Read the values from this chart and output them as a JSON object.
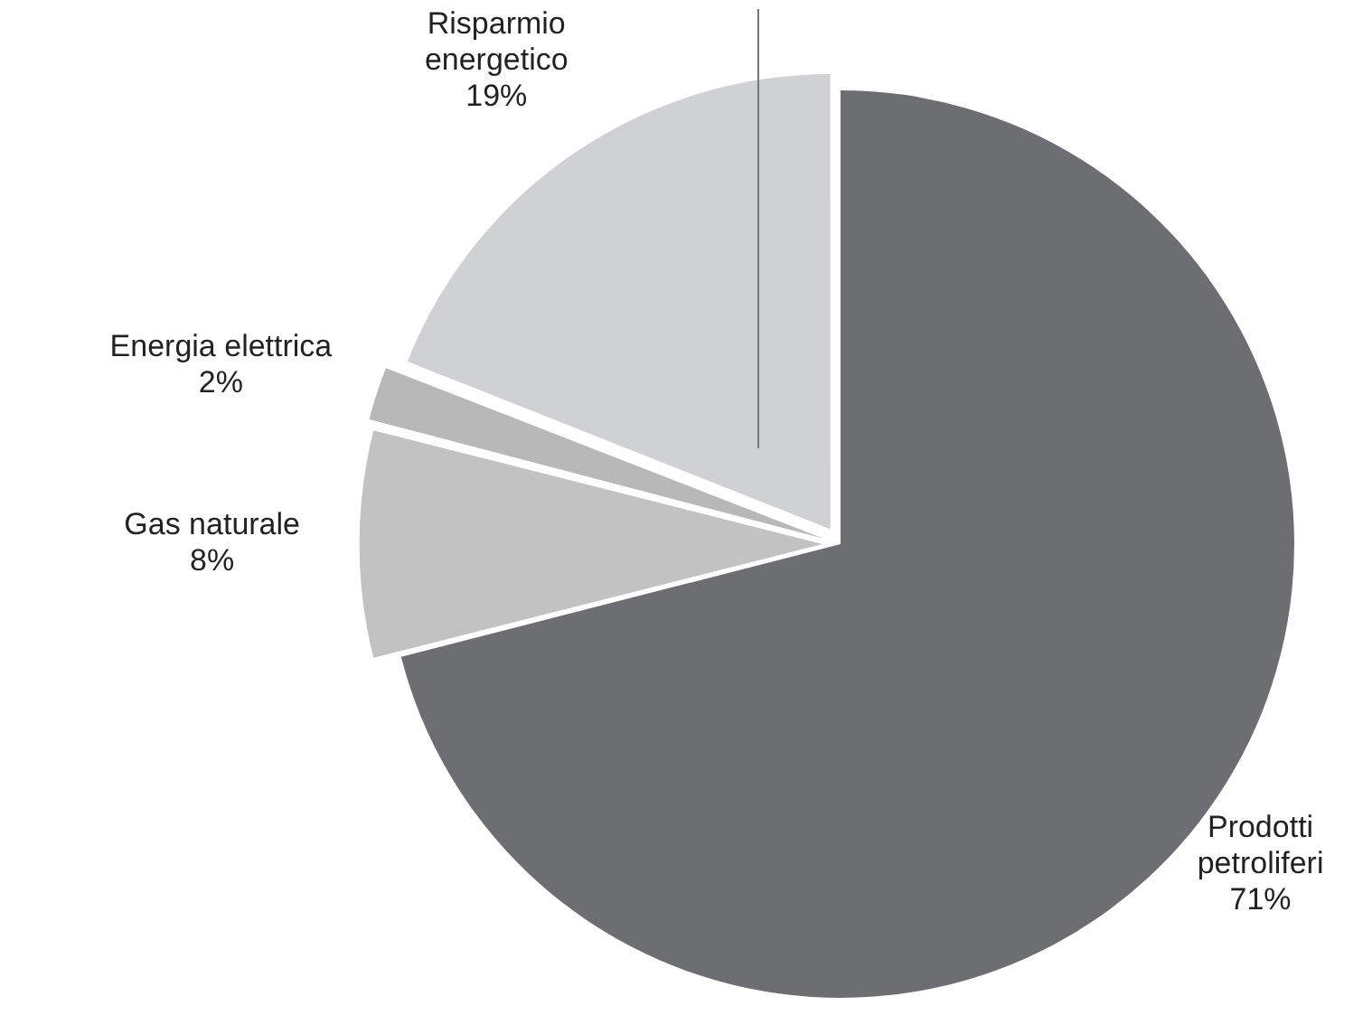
{
  "chart_data": {
    "type": "pie",
    "categories": [
      "Prodotti petroliferi",
      "Gas naturale",
      "Energia elettrica",
      "Risparmio energetico"
    ],
    "values": [
      71,
      8,
      2,
      19
    ],
    "value_labels": [
      "71%",
      "8%",
      "2%",
      "19%"
    ],
    "colors": [
      "#6d6e71",
      "#c2c2c2",
      "#b8b8b8",
      "#d0d1d2"
    ],
    "legend": false
  }
}
